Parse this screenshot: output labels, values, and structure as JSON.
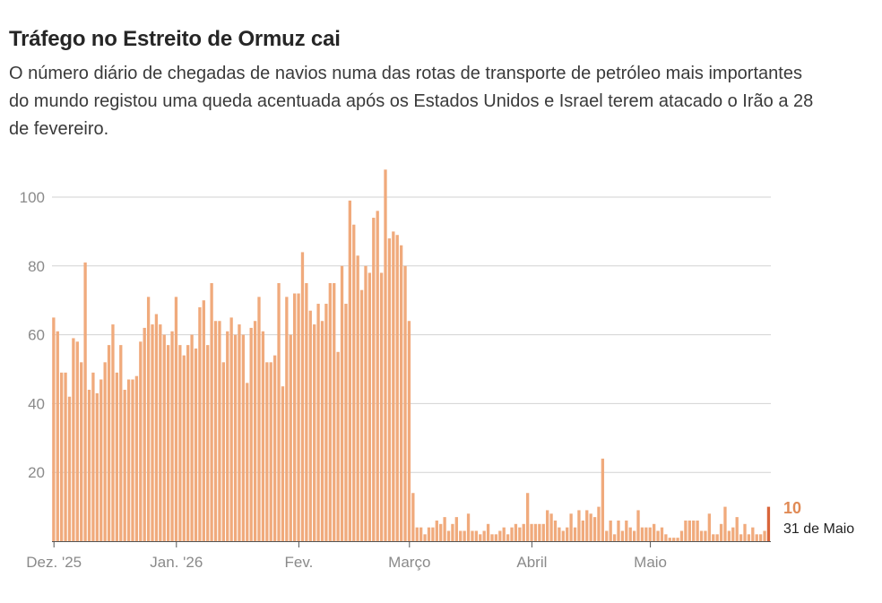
{
  "chart_data": {
    "type": "bar",
    "title": "Tráfego no Estreito de Ormuz cai",
    "subtitle": "O número diário de chegadas de navios numa das rotas de transporte de petróleo mais importantes do mundo registou uma queda acentuada após os Estados Unidos e Israel terem atacado o Irão a 28 de fevereiro.",
    "xlabel": "",
    "ylabel": "",
    "ylim": [
      0,
      110
    ],
    "yticks": [
      20,
      40,
      60,
      80,
      100
    ],
    "grid": true,
    "x_start": "2025-12-01",
    "x_end": "2026-05-31",
    "x_ticks": [
      {
        "label": "Dez. '25",
        "date": "2025-12-01"
      },
      {
        "label": "Jan. '26",
        "date": "2026-01-01"
      },
      {
        "label": "Fev.",
        "date": "2026-02-01"
      },
      {
        "label": "Março",
        "date": "2026-03-01"
      },
      {
        "label": "Abril",
        "date": "2026-04-01"
      },
      {
        "label": "Maio",
        "date": "2026-05-01"
      }
    ],
    "colors": {
      "bar": "#f0aa7c",
      "highlight": "#d9653a",
      "grid": "#d2d2d2",
      "axis": "#555555"
    },
    "callout": {
      "value": "10",
      "date_label": "31 de Maio"
    },
    "values": [
      65,
      61,
      49,
      49,
      42,
      59,
      58,
      52,
      81,
      44,
      49,
      43,
      47,
      52,
      57,
      63,
      49,
      57,
      44,
      47,
      47,
      48,
      58,
      62,
      71,
      63,
      66,
      63,
      60,
      57,
      61,
      71,
      57,
      54,
      57,
      60,
      56,
      68,
      70,
      57,
      75,
      64,
      64,
      52,
      61,
      65,
      60,
      63,
      60,
      46,
      62,
      64,
      71,
      61,
      52,
      52,
      54,
      75,
      45,
      71,
      60,
      72,
      72,
      84,
      75,
      67,
      63,
      69,
      64,
      69,
      75,
      75,
      55,
      80,
      69,
      99,
      92,
      83,
      73,
      80,
      78,
      94,
      96,
      78,
      108,
      88,
      90,
      89,
      86,
      80,
      64,
      14,
      4,
      4,
      2,
      4,
      4,
      6,
      5,
      7,
      3,
      5,
      7,
      3,
      3,
      8,
      3,
      3,
      2,
      3,
      5,
      2,
      2,
      3,
      4,
      2,
      4,
      5,
      4,
      5,
      14,
      5,
      5,
      5,
      5,
      9,
      8,
      6,
      4,
      3,
      4,
      8,
      4,
      9,
      6,
      9,
      8,
      7,
      10,
      24,
      3,
      6,
      2,
      6,
      3,
      6,
      4,
      3,
      9,
      4,
      4,
      4,
      5,
      3,
      4,
      2,
      1,
      1,
      1,
      3,
      6,
      6,
      6,
      6,
      3,
      3,
      8,
      2,
      2,
      5,
      10,
      3,
      4,
      7,
      2,
      5,
      2,
      4,
      2,
      2,
      3,
      10
    ]
  }
}
